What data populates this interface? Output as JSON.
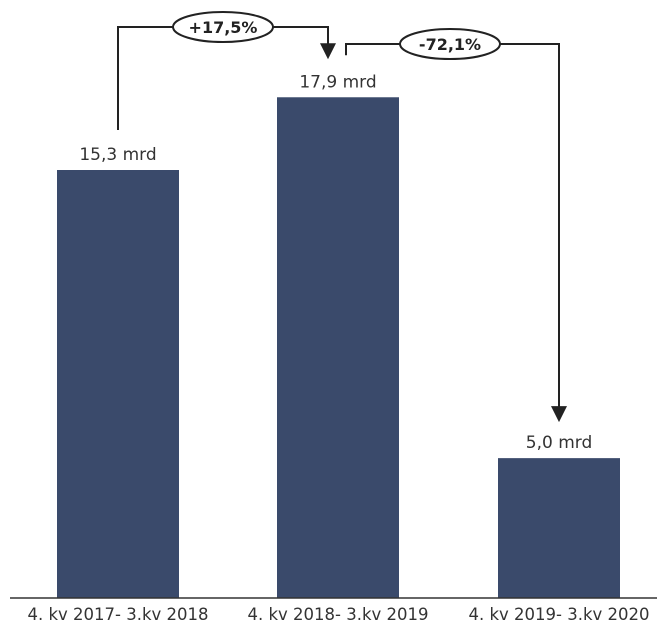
{
  "chart_data": {
    "type": "bar",
    "categories": [
      "4. kv 2017- 3.kv 2018",
      "4. kv 2018- 3.kv 2019",
      "4. kv 2019- 3.kv 2020"
    ],
    "values": [
      15.3,
      17.9,
      5.0
    ],
    "value_labels": [
      "15,3 mrd",
      "17,9 mrd",
      "5,0 mrd"
    ],
    "bar_color": "#3a4a6b",
    "ylim": [
      0,
      20
    ],
    "grid": false,
    "title": "",
    "xlabel": "",
    "ylabel": "",
    "annotations": [
      {
        "from": 0,
        "to": 1,
        "label": "+17,5%"
      },
      {
        "from": 1,
        "to": 2,
        "label": "-72,1%"
      }
    ]
  }
}
